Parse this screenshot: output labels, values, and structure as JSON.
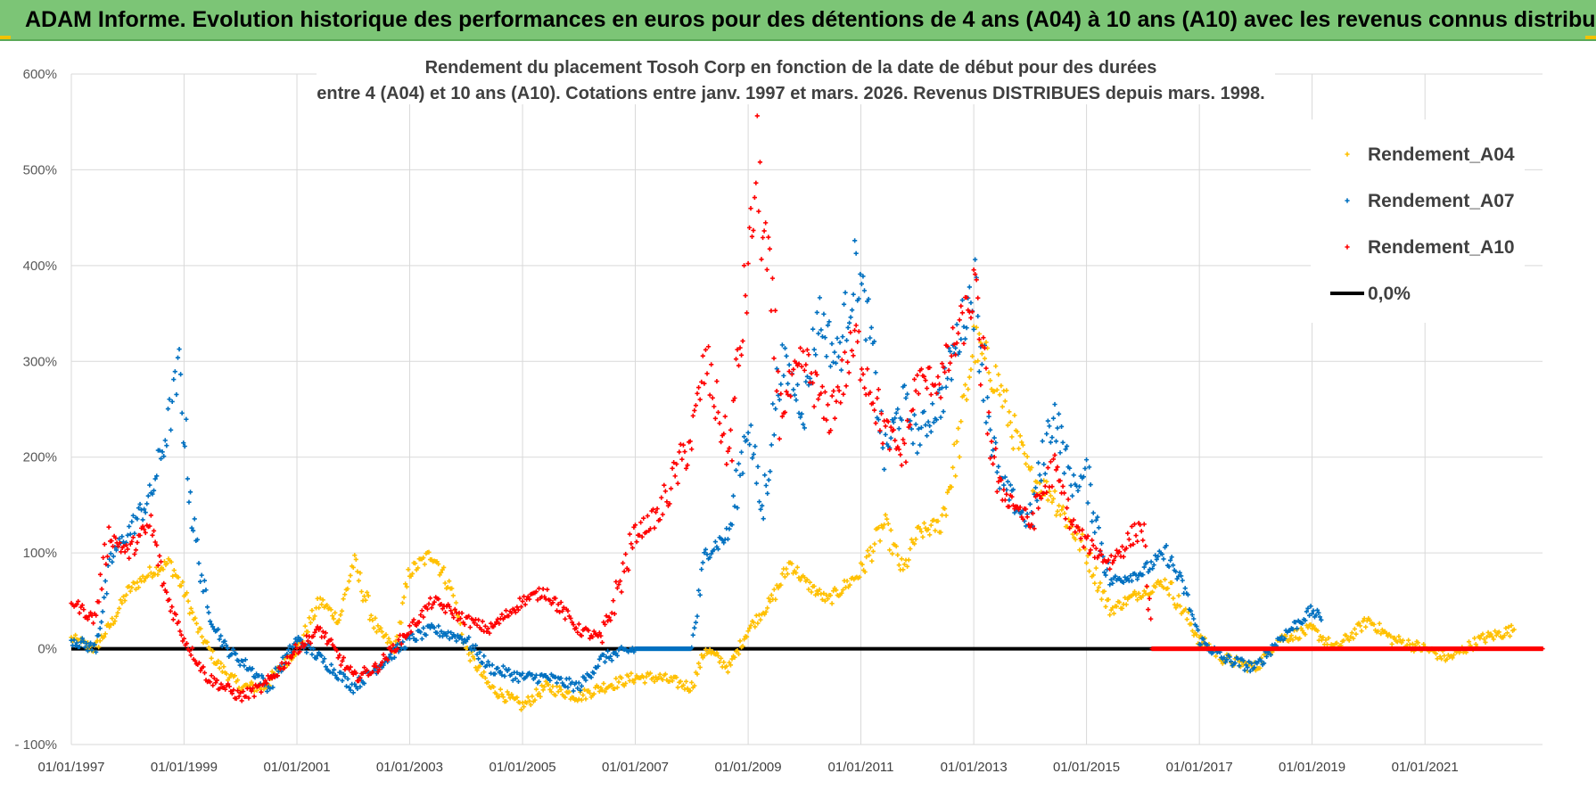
{
  "banner": {
    "title": "ADAM Informe. Evolution historique des performances en euros pour des détentions de 4 ans (A04) à 10 ans (A10) avec les revenus connus distribués"
  },
  "colors": {
    "banner_bg": "#7cc576",
    "A04": "#ffc000",
    "A07": "#0070c0",
    "A10": "#ff0000",
    "zero_line": "#000000",
    "grid": "#d9d9d9"
  },
  "chart_data": {
    "type": "scatter",
    "title": "Rendement du placement Tosoh Corp en fonction de la date de début pour des durées",
    "subtitle": "entre 4 (A04) et 10 ans (A10). Cotations entre janv. 1997 et mars. 2026. Revenus DISTRIBUES depuis mars. 1998.",
    "xlabel": "",
    "ylabel": "",
    "x_range": [
      "1997-01-01",
      "2023-02-01"
    ],
    "ylim": [
      -100,
      600
    ],
    "y_ticks": [
      "- 100%",
      "0%",
      "100%",
      "200%",
      "300%",
      "400%",
      "500%",
      "600%"
    ],
    "x_ticks": [
      "01/01/1997",
      "01/01/1999",
      "01/01/2001",
      "01/01/2003",
      "01/01/2005",
      "01/01/2007",
      "01/01/2009",
      "01/01/2011",
      "01/01/2013",
      "01/01/2015",
      "01/01/2017",
      "01/01/2019",
      "01/01/2021"
    ],
    "grid": true,
    "legend_position": "top-right",
    "series": [
      {
        "name": "Rendement_A04",
        "color": "#ffc000",
        "marker": "+",
        "points": [
          [
            "1997-01-01",
            10
          ],
          [
            "1997-06-01",
            0
          ],
          [
            "1997-10-01",
            30
          ],
          [
            "1998-01-01",
            60
          ],
          [
            "1998-06-01",
            80
          ],
          [
            "1998-10-01",
            90
          ],
          [
            "1999-01-01",
            60
          ],
          [
            "1999-04-01",
            20
          ],
          [
            "1999-08-01",
            -15
          ],
          [
            "2000-01-01",
            -40
          ],
          [
            "2000-06-01",
            -40
          ],
          [
            "2001-01-01",
            0
          ],
          [
            "2001-06-01",
            50
          ],
          [
            "2001-10-01",
            30
          ],
          [
            "2002-01-01",
            90
          ],
          [
            "2002-06-01",
            20
          ],
          [
            "2002-10-01",
            0
          ],
          [
            "2003-01-01",
            80
          ],
          [
            "2003-06-01",
            100
          ],
          [
            "2003-10-01",
            60
          ],
          [
            "2004-01-01",
            0
          ],
          [
            "2004-06-01",
            -40
          ],
          [
            "2005-01-01",
            -60
          ],
          [
            "2005-06-01",
            -40
          ],
          [
            "2006-01-01",
            -50
          ],
          [
            "2006-06-01",
            -40
          ],
          [
            "2007-01-01",
            -30
          ],
          [
            "2007-06-01",
            -30
          ],
          [
            "2008-01-01",
            -40
          ],
          [
            "2008-04-01",
            0
          ],
          [
            "2008-09-01",
            -20
          ],
          [
            "2009-01-01",
            20
          ],
          [
            "2009-06-01",
            50
          ],
          [
            "2009-10-01",
            90
          ],
          [
            "2010-01-01",
            70
          ],
          [
            "2010-06-01",
            50
          ],
          [
            "2011-01-01",
            80
          ],
          [
            "2011-06-01",
            130
          ],
          [
            "2011-10-01",
            80
          ],
          [
            "2012-01-01",
            120
          ],
          [
            "2012-06-01",
            130
          ],
          [
            "2012-10-01",
            220
          ],
          [
            "2013-01-01",
            320
          ],
          [
            "2013-06-01",
            280
          ],
          [
            "2013-10-01",
            220
          ],
          [
            "2014-01-01",
            180
          ],
          [
            "2014-06-01",
            160
          ],
          [
            "2015-01-01",
            100
          ],
          [
            "2015-06-01",
            40
          ],
          [
            "2016-01-01",
            60
          ],
          [
            "2016-06-01",
            70
          ],
          [
            "2017-01-01",
            10
          ],
          [
            "2017-06-01",
            -10
          ],
          [
            "2018-01-01",
            -20
          ],
          [
            "2018-06-01",
            10
          ],
          [
            "2019-01-01",
            20
          ],
          [
            "2019-06-01",
            0
          ],
          [
            "2020-01-01",
            30
          ],
          [
            "2020-06-01",
            10
          ],
          [
            "2021-01-01",
            0
          ],
          [
            "2021-06-01",
            -10
          ],
          [
            "2022-01-01",
            10
          ],
          [
            "2022-08-01",
            20
          ]
        ]
      },
      {
        "name": "Rendement_A07",
        "color": "#0070c0",
        "marker": "+",
        "points": [
          [
            "1997-01-01",
            10
          ],
          [
            "1997-06-01",
            0
          ],
          [
            "1997-10-01",
            100
          ],
          [
            "1998-01-01",
            120
          ],
          [
            "1998-06-01",
            160
          ],
          [
            "1998-09-01",
            220
          ],
          [
            "1998-12-01",
            290
          ],
          [
            "1999-03-01",
            130
          ],
          [
            "1999-06-01",
            40
          ],
          [
            "1999-10-01",
            0
          ],
          [
            "2000-03-01",
            -20
          ],
          [
            "2000-07-01",
            -40
          ],
          [
            "2001-01-01",
            10
          ],
          [
            "2001-06-01",
            -10
          ],
          [
            "2002-01-01",
            -40
          ],
          [
            "2002-06-01",
            -20
          ],
          [
            "2003-01-01",
            10
          ],
          [
            "2003-06-01",
            20
          ],
          [
            "2004-01-01",
            10
          ],
          [
            "2004-06-01",
            -20
          ],
          [
            "2005-01-01",
            -30
          ],
          [
            "2005-06-01",
            -30
          ],
          [
            "2006-01-01",
            -40
          ],
          [
            "2006-06-01",
            -10
          ],
          [
            "2007-01-01",
            0
          ],
          [
            "2007-06-01",
            0
          ],
          [
            "2008-01-01",
            0
          ],
          [
            "2008-04-01",
            100
          ],
          [
            "2008-09-01",
            120
          ],
          [
            "2009-01-01",
            240
          ],
          [
            "2009-04-01",
            140
          ],
          [
            "2009-08-01",
            300
          ],
          [
            "2010-01-01",
            250
          ],
          [
            "2010-04-01",
            350
          ],
          [
            "2010-08-01",
            300
          ],
          [
            "2010-12-01",
            400
          ],
          [
            "2011-03-01",
            330
          ],
          [
            "2011-06-01",
            200
          ],
          [
            "2011-10-01",
            260
          ],
          [
            "2012-01-01",
            220
          ],
          [
            "2012-06-01",
            260
          ],
          [
            "2012-10-01",
            330
          ],
          [
            "2013-01-01",
            380
          ],
          [
            "2013-06-01",
            180
          ],
          [
            "2013-10-01",
            150
          ],
          [
            "2014-01-01",
            130
          ],
          [
            "2014-06-01",
            250
          ],
          [
            "2014-10-01",
            170
          ],
          [
            "2015-01-01",
            180
          ],
          [
            "2015-06-01",
            70
          ],
          [
            "2016-01-01",
            80
          ],
          [
            "2016-06-01",
            100
          ],
          [
            "2016-10-01",
            60
          ],
          [
            "2017-01-01",
            10
          ],
          [
            "2017-06-01",
            -10
          ],
          [
            "2018-01-01",
            -20
          ],
          [
            "2018-06-01",
            10
          ],
          [
            "2019-01-01",
            40
          ],
          [
            "2019-03-01",
            30
          ]
        ]
      },
      {
        "name": "Rendement_A10",
        "color": "#ff0000",
        "marker": "+",
        "points": [
          [
            "1997-01-01",
            50
          ],
          [
            "1997-06-01",
            30
          ],
          [
            "1997-09-01",
            120
          ],
          [
            "1998-01-01",
            100
          ],
          [
            "1998-06-01",
            130
          ],
          [
            "1998-09-01",
            60
          ],
          [
            "1999-01-01",
            10
          ],
          [
            "1999-06-01",
            -30
          ],
          [
            "2000-01-01",
            -50
          ],
          [
            "2000-06-01",
            -40
          ],
          [
            "2001-01-01",
            0
          ],
          [
            "2001-06-01",
            20
          ],
          [
            "2002-01-01",
            -30
          ],
          [
            "2002-06-01",
            -20
          ],
          [
            "2003-01-01",
            20
          ],
          [
            "2003-06-01",
            50
          ],
          [
            "2004-01-01",
            30
          ],
          [
            "2004-06-01",
            20
          ],
          [
            "2005-01-01",
            50
          ],
          [
            "2005-06-01",
            60
          ],
          [
            "2006-01-01",
            20
          ],
          [
            "2006-06-01",
            10
          ],
          [
            "2007-01-01",
            120
          ],
          [
            "2007-06-01",
            140
          ],
          [
            "2008-01-01",
            220
          ],
          [
            "2008-04-01",
            300
          ],
          [
            "2008-09-01",
            200
          ],
          [
            "2009-01-01",
            400
          ],
          [
            "2009-03-01",
            500
          ],
          [
            "2009-08-01",
            250
          ],
          [
            "2010-01-01",
            300
          ],
          [
            "2010-06-01",
            240
          ],
          [
            "2010-12-01",
            320
          ],
          [
            "2011-06-01",
            230
          ],
          [
            "2011-10-01",
            200
          ],
          [
            "2012-01-01",
            280
          ],
          [
            "2012-06-01",
            280
          ],
          [
            "2012-10-01",
            330
          ],
          [
            "2013-01-01",
            370
          ],
          [
            "2013-06-01",
            170
          ],
          [
            "2013-10-01",
            150
          ],
          [
            "2014-01-01",
            130
          ],
          [
            "2014-06-01",
            190
          ],
          [
            "2014-10-01",
            130
          ],
          [
            "2015-01-01",
            110
          ],
          [
            "2015-06-01",
            90
          ],
          [
            "2016-01-01",
            130
          ],
          [
            "2016-03-01",
            0
          ],
          [
            "2023-02-01",
            0
          ]
        ]
      }
    ],
    "reference_line": {
      "name": "0,0%",
      "y": 0,
      "color": "#000000"
    }
  }
}
